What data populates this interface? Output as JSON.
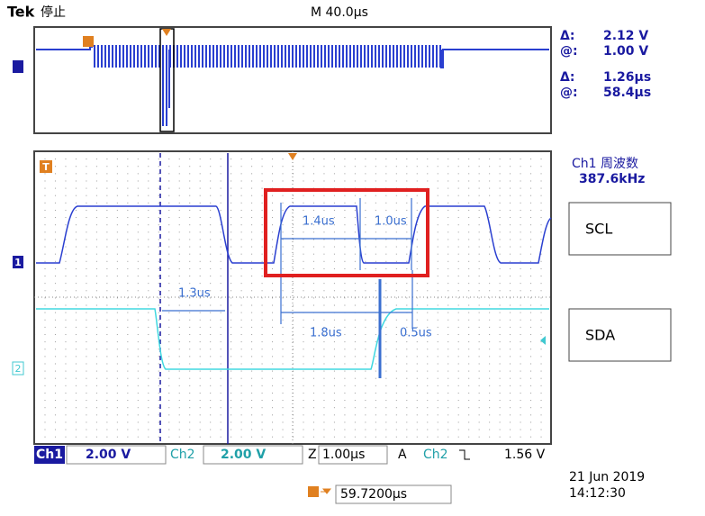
{
  "header": {
    "brand": "Tek",
    "status": "停止",
    "timebase": "M 40.0µs"
  },
  "readouts": [
    {
      "label": "Δ:",
      "value": "2.12 V"
    },
    {
      "label": "@:",
      "value": "1.00 V"
    },
    {
      "label": "Δ:",
      "value": "1.26µs"
    },
    {
      "label": "@:",
      "value": "58.4µs"
    }
  ],
  "measurement": {
    "title": "Ch1 周波数",
    "value": "387.6kHz"
  },
  "channels": {
    "ch1_marker": "1",
    "ch2_marker": "2",
    "trigger_marker": "T"
  },
  "signal_labels": [
    "SCL",
    "SDA"
  ],
  "annotations": [
    "1.4us",
    "1.0us",
    "1.3us",
    "1.8us",
    "0.5us"
  ],
  "status_bar": {
    "ch1": "Ch1",
    "ch1_scale": "2.00 V",
    "ch2": "Ch2",
    "ch2_scale": "2.00 V",
    "zoom": "Z",
    "zoom_scale": "1.00µs",
    "trigger_mode": "A",
    "trigger_source": "Ch2",
    "trigger_level": "1.56 V"
  },
  "footer": {
    "date": "21 Jun 2019",
    "time": "14:12:30",
    "trigger_position": "59.7200µs"
  }
}
